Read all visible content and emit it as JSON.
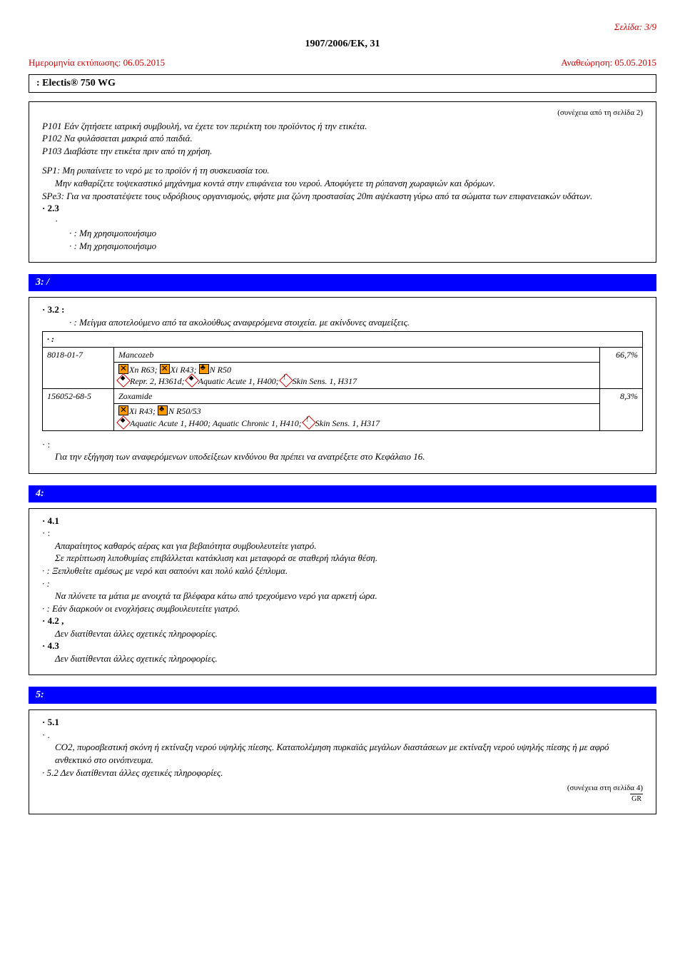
{
  "page_label": "Σελίδα: 3/9",
  "regulation": "1907/2006/ΕΚ,          31",
  "print_date_label": "Ημερομηνία εκτύπωσης: 06.05.2015",
  "revision_label": "Αναθεώρηση: 05.05.2015",
  "product_name": ": Electis® 750 WG",
  "cont_from": "(συνέχεια από τη σελίδα 2)",
  "p_statements": {
    "p101": "P101 Εάν ζητήσετε ιατρική συμβουλή, να έχετε τον περιέκτη του προϊόντος ή την ετικέτα.",
    "p102": "P102 Να φυλάσσεται μακριά από παιδιά.",
    "p103": "P103 Διαβάστε την ετικέτα πριν από τη χρήση."
  },
  "sp_statements": {
    "sp1": "SP1: Μη ρυπαίνετε το νερό με το προϊόν ή τη συσκευασία του.",
    "sp1b": "Μην καθαρίζετε τοψεκαστικό μηχάνημα κοντά στην επιφάνεια του νερού. Αποφύγετε τη ρύπανση χωραφιών και δρόμων.",
    "spe3": "SPe3: Για να προστατέψετε τους υδρόβιους οργανισμούς, φήστε μια ζώνη προστασίας 20m αψέκαστη γύρω από τα σώματα των επιφανειακών υδάτων."
  },
  "sec23": "· 2.3",
  "pbt": ": Μη χρησιμοποιήσιμο",
  "vpvb": ": Μη χρησιμοποιήσιμο",
  "sec3_hdr": "3:                  /",
  "sec32": "· 3.2                         :",
  "sec32_desc": ": Μείγμα αποτελούμενο από τα ακολούθως αναφερόμενα στοιχεία. με ακίνδυνες αναμείξεις.",
  "ing_hdr": "                                            :",
  "ingredients": [
    {
      "cas": "8018-01-7",
      "name": "Mancozeb",
      "haz1": "Xn R63;      Xi R43;      N R50",
      "haz2": "Repr. 2, H361d;      Aquatic Acute 1, H400;      Skin Sens. 1, H317",
      "pct": "66,7%"
    },
    {
      "cas": "156052-68-5",
      "name": "Zoxamide",
      "haz1": "Xi R43;      N R50/53",
      "haz2": "Aquatic Acute 1, H400; Aquatic Chronic 1, H410;      Skin Sens. 1, H317",
      "pct": "8,3%"
    }
  ],
  "sec3_note_lbl": "·                                              :",
  "sec3_note": "Για την εξήγηση των αναφερόμενων υποδείξεων κινδύνου θα πρέπει να ανατρέξετε στο Κεφάλαιο 16.",
  "sec4_hdr": "4:",
  "sec41": "· 4.1",
  "sec41_sub": "                           :",
  "s4_lines": {
    "a": "Απαραίτητος καθαρός αέρας και για βεβαιότητα συμβουλευτείτε γιατρό.",
    "b": "Σε περίπτωση λιποθυμίας επιβάλλεται κατάκλιση και μεταφορά σε σταθερή πλάγια θέση.",
    "c": "             : Ξεπλυθείτε αμέσως με νερό και σαπούνι και πολύ καλό ξέπλυμα.",
    "d": "                   :",
    "e": "Να πλύνετε τα μάτια με ανοιχτά τα βλέφαρα κάτω από τρεχούμενο νερό για αρκετή ώρα.",
    "f": "                    : Εάν διαρκούν οι ενοχλήσεις συμβουλευτείτε γιατρό."
  },
  "sec42": "· 4.2                                                              ,",
  "s42_txt": "Δεν διατίθενται άλλες σχετικές πληροφορίες.",
  "sec43": "· 4.3",
  "s43_txt": "Δεν διατίθενται άλλες σχετικές πληροφορίες.",
  "sec5_hdr": "5:",
  "sec51": "· 5.1",
  "sec51_sub": "                                         .",
  "s5_txt": "CO2, πυροσβεστική σκόνη ή εκτίναξη νερού υψηλής πίεσης. Καταπολέμηση πυρκαϊάς μεγάλων διαστάσεων με εκτίναξη νερού υψηλής πίεσης ή με αφρό ανθεκτικό στο οινόπνευμα.",
  "sec52": "· 5.2                                                                                Δεν διατίθενται άλλες σχετικές πληροφορίες.",
  "cont_to": "(συνέχεια στη σελίδα 4)",
  "gr": "GR"
}
